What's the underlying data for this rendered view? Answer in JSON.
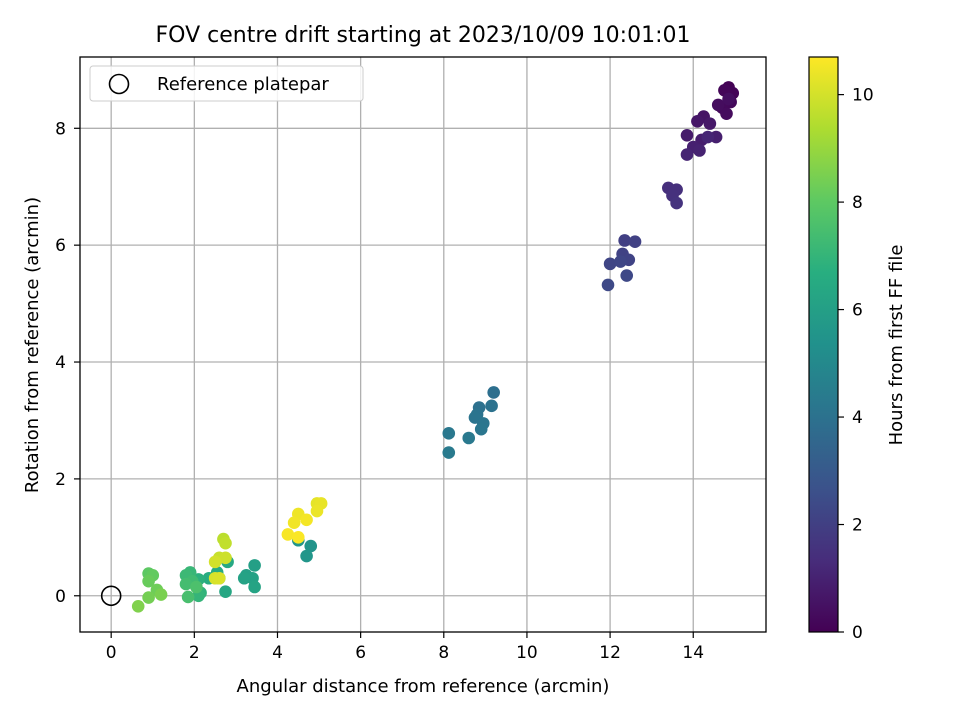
{
  "chart_data": {
    "type": "scatter",
    "title": "FOV centre drift starting at 2023/10/09 10:01:01",
    "xlabel": "Angular distance from reference (arcmin)",
    "ylabel": "Rotation from reference (arcmin)",
    "xlim": [
      -0.75,
      15.75
    ],
    "ylim": [
      -0.62,
      9.22
    ],
    "xticks": [
      0,
      2,
      4,
      6,
      8,
      10,
      12,
      14
    ],
    "yticks": [
      0,
      2,
      4,
      6,
      8
    ],
    "grid": true,
    "legend": {
      "location": "upper-left",
      "entries": [
        "Reference platepar"
      ]
    },
    "reference_point": {
      "x": 0,
      "y": 0,
      "label": "Reference platepar"
    },
    "colorbar": {
      "label": "Hours from first FF file",
      "colormap": "viridis",
      "range": [
        0,
        10.7
      ],
      "ticks": [
        0,
        2,
        4,
        6,
        8,
        10
      ]
    },
    "points": [
      {
        "x": 14.85,
        "y": 8.7,
        "c": 0.05
      },
      {
        "x": 14.95,
        "y": 8.6,
        "c": 0.1
      },
      {
        "x": 14.75,
        "y": 8.65,
        "c": 0.15
      },
      {
        "x": 14.9,
        "y": 8.45,
        "c": 0.2
      },
      {
        "x": 14.7,
        "y": 8.35,
        "c": 0.25
      },
      {
        "x": 14.8,
        "y": 8.25,
        "c": 0.3
      },
      {
        "x": 14.6,
        "y": 8.4,
        "c": 0.35
      },
      {
        "x": 14.85,
        "y": 8.5,
        "c": 0.4
      },
      {
        "x": 14.25,
        "y": 8.2,
        "c": 0.55
      },
      {
        "x": 14.1,
        "y": 8.12,
        "c": 0.65
      },
      {
        "x": 14.4,
        "y": 8.08,
        "c": 0.7
      },
      {
        "x": 13.85,
        "y": 7.88,
        "c": 0.8
      },
      {
        "x": 14.2,
        "y": 7.8,
        "c": 0.85
      },
      {
        "x": 14.55,
        "y": 7.85,
        "c": 0.9
      },
      {
        "x": 14.0,
        "y": 7.68,
        "c": 0.95
      },
      {
        "x": 14.15,
        "y": 7.62,
        "c": 1.0
      },
      {
        "x": 13.85,
        "y": 7.55,
        "c": 1.05
      },
      {
        "x": 14.35,
        "y": 7.85,
        "c": 1.1
      },
      {
        "x": 13.4,
        "y": 6.98,
        "c": 1.4
      },
      {
        "x": 13.6,
        "y": 6.95,
        "c": 1.45
      },
      {
        "x": 13.5,
        "y": 6.85,
        "c": 1.5
      },
      {
        "x": 13.6,
        "y": 6.72,
        "c": 1.55
      },
      {
        "x": 12.35,
        "y": 6.08,
        "c": 2.0
      },
      {
        "x": 12.6,
        "y": 6.06,
        "c": 2.05
      },
      {
        "x": 12.3,
        "y": 5.85,
        "c": 2.1
      },
      {
        "x": 12.45,
        "y": 5.75,
        "c": 2.15
      },
      {
        "x": 12.0,
        "y": 5.68,
        "c": 2.2
      },
      {
        "x": 12.25,
        "y": 5.72,
        "c": 2.25
      },
      {
        "x": 12.4,
        "y": 5.48,
        "c": 2.3
      },
      {
        "x": 11.95,
        "y": 5.32,
        "c": 2.35
      },
      {
        "x": 9.2,
        "y": 3.48,
        "c": 3.9
      },
      {
        "x": 8.85,
        "y": 3.22,
        "c": 3.95
      },
      {
        "x": 9.15,
        "y": 3.25,
        "c": 4.0
      },
      {
        "x": 8.8,
        "y": 3.1,
        "c": 4.05
      },
      {
        "x": 8.75,
        "y": 3.05,
        "c": 4.1
      },
      {
        "x": 8.95,
        "y": 2.95,
        "c": 4.15
      },
      {
        "x": 8.9,
        "y": 2.85,
        "c": 4.2
      },
      {
        "x": 8.12,
        "y": 2.78,
        "c": 4.25
      },
      {
        "x": 8.6,
        "y": 2.7,
        "c": 4.3
      },
      {
        "x": 8.12,
        "y": 2.45,
        "c": 4.35
      },
      {
        "x": 4.8,
        "y": 0.85,
        "c": 5.5
      },
      {
        "x": 4.5,
        "y": 0.95,
        "c": 5.55
      },
      {
        "x": 4.7,
        "y": 0.68,
        "c": 5.6
      },
      {
        "x": 3.45,
        "y": 0.52,
        "c": 6.0
      },
      {
        "x": 3.25,
        "y": 0.35,
        "c": 6.05
      },
      {
        "x": 3.4,
        "y": 0.3,
        "c": 6.1
      },
      {
        "x": 3.2,
        "y": 0.3,
        "c": 6.15
      },
      {
        "x": 3.45,
        "y": 0.15,
        "c": 6.2
      },
      {
        "x": 2.75,
        "y": 0.07,
        "c": 6.3
      },
      {
        "x": 2.8,
        "y": 0.58,
        "c": 6.4
      },
      {
        "x": 2.55,
        "y": 0.4,
        "c": 6.5
      },
      {
        "x": 2.35,
        "y": 0.3,
        "c": 6.6
      },
      {
        "x": 2.6,
        "y": 0.3,
        "c": 6.7
      },
      {
        "x": 2.1,
        "y": 0.28,
        "c": 6.8
      },
      {
        "x": 2.15,
        "y": 0.05,
        "c": 6.9
      },
      {
        "x": 2.1,
        "y": 0.0,
        "c": 7.0
      },
      {
        "x": 1.9,
        "y": 0.4,
        "c": 7.1
      },
      {
        "x": 1.8,
        "y": 0.35,
        "c": 7.2
      },
      {
        "x": 1.95,
        "y": 0.25,
        "c": 7.3
      },
      {
        "x": 1.8,
        "y": 0.2,
        "c": 7.4
      },
      {
        "x": 1.85,
        "y": -0.02,
        "c": 7.5
      },
      {
        "x": 2.05,
        "y": 0.15,
        "c": 7.6
      },
      {
        "x": 0.9,
        "y": 0.38,
        "c": 8.0
      },
      {
        "x": 1.0,
        "y": 0.35,
        "c": 8.1
      },
      {
        "x": 0.9,
        "y": 0.25,
        "c": 8.2
      },
      {
        "x": 1.1,
        "y": 0.1,
        "c": 8.3
      },
      {
        "x": 0.9,
        "y": -0.03,
        "c": 8.4
      },
      {
        "x": 1.2,
        "y": 0.02,
        "c": 8.5
      },
      {
        "x": 0.65,
        "y": -0.18,
        "c": 8.6
      },
      {
        "x": 2.7,
        "y": 0.97,
        "c": 9.6
      },
      {
        "x": 2.75,
        "y": 0.9,
        "c": 9.7
      },
      {
        "x": 2.6,
        "y": 0.65,
        "c": 9.8
      },
      {
        "x": 2.75,
        "y": 0.65,
        "c": 9.9
      },
      {
        "x": 2.5,
        "y": 0.58,
        "c": 10.0
      },
      {
        "x": 2.5,
        "y": 0.3,
        "c": 10.05
      },
      {
        "x": 2.6,
        "y": 0.3,
        "c": 10.1
      },
      {
        "x": 4.95,
        "y": 1.58,
        "c": 10.3
      },
      {
        "x": 5.05,
        "y": 1.58,
        "c": 10.35
      },
      {
        "x": 4.95,
        "y": 1.45,
        "c": 10.4
      },
      {
        "x": 4.5,
        "y": 1.4,
        "c": 10.45
      },
      {
        "x": 4.4,
        "y": 1.25,
        "c": 10.5
      },
      {
        "x": 4.7,
        "y": 1.3,
        "c": 10.55
      },
      {
        "x": 4.25,
        "y": 1.05,
        "c": 10.6
      },
      {
        "x": 4.5,
        "y": 1.0,
        "c": 10.65
      }
    ]
  }
}
